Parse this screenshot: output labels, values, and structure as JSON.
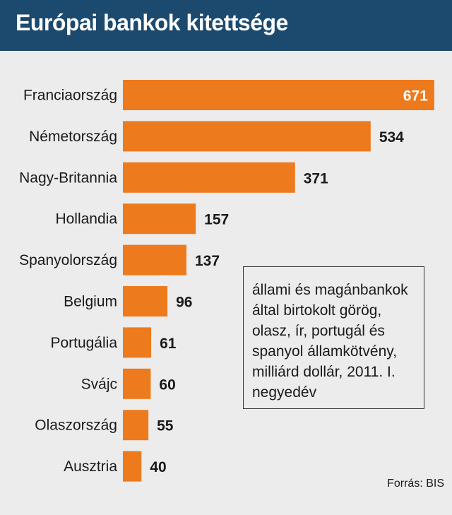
{
  "title": "Európai bankok kitettsége",
  "note": "állami és magánbankok által birtokolt görög, olasz, ír, portugál és spanyol államkötvény, milliárd dollár, 2011. I. negyedév",
  "source": "Forrás: BIS",
  "colors": {
    "bar": "#ed7a1c",
    "header": "#1c4a6e",
    "background": "#ececec"
  },
  "chart_data": {
    "type": "bar",
    "orientation": "horizontal",
    "categories": [
      "Franciaország",
      "Németország",
      "Nagy-Britannia",
      "Hollandia",
      "Spanyolország",
      "Belgium",
      "Portugália",
      "Svájc",
      "Olaszország",
      "Ausztria"
    ],
    "values": [
      671,
      534,
      371,
      157,
      137,
      96,
      61,
      60,
      55,
      40
    ],
    "title": "Európai bankok kitettsége",
    "xlabel": "",
    "ylabel": "",
    "grid": false,
    "legend": "none"
  }
}
